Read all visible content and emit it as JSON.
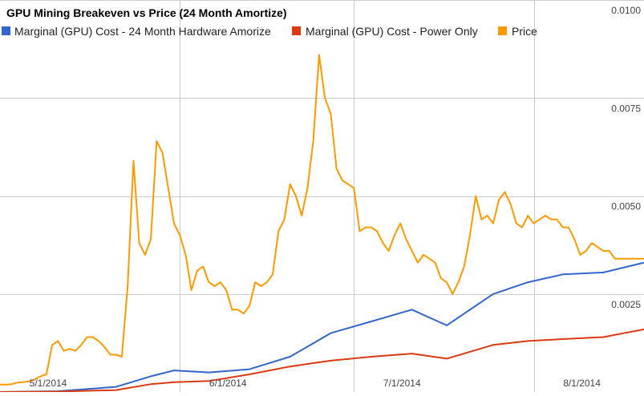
{
  "chart_data": {
    "type": "line",
    "title": "GPU Mining Breakeven vs Price (24 Month Amortize)",
    "xlabel": "",
    "ylabel": "",
    "x_ticks": [
      "5/1/2014",
      "6/1/2014",
      "7/1/2014",
      "8/1/2014"
    ],
    "x_tick_values": [
      0,
      31,
      61,
      92
    ],
    "y_ticks": [
      "0.0100",
      "0.0075",
      "0.0050",
      "0.0025"
    ],
    "y_tick_values": [
      0.01,
      0.0075,
      0.005,
      0.0025
    ],
    "ylim": [
      0,
      0.01
    ],
    "xlim": [
      0,
      111
    ],
    "grid": true,
    "legend_position": "top",
    "series": [
      {
        "name": "Marginal (GPU) Cost - 24 Month Hardware Amorize",
        "color": "#3366cc",
        "x": [
          0,
          10,
          20,
          26,
          30,
          36,
          43,
          50,
          57,
          64,
          71,
          77,
          85,
          91,
          97,
          104,
          111
        ],
        "y": [
          0,
          2e-05,
          0.00013,
          0.0004,
          0.00055,
          0.0005,
          0.00058,
          0.0009,
          0.0015,
          0.0018,
          0.0021,
          0.0017,
          0.0025,
          0.0028,
          0.003,
          0.00305,
          0.0033
        ]
      },
      {
        "name": "Marginal (GPU) Cost - Power Only",
        "color": "#dc3912",
        "x": [
          0,
          10,
          20,
          26,
          30,
          36,
          43,
          50,
          57,
          64,
          71,
          77,
          85,
          91,
          97,
          104,
          111
        ],
        "y": [
          0,
          1e-05,
          5e-05,
          0.0002,
          0.00025,
          0.00028,
          0.00045,
          0.00065,
          0.0008,
          0.0009,
          0.00098,
          0.00085,
          0.0012,
          0.0013,
          0.00135,
          0.0014,
          0.0016
        ]
      },
      {
        "name": "Price",
        "color": "#ff9900",
        "x": [
          0,
          1,
          2,
          3,
          4,
          5,
          6,
          7,
          8,
          9,
          10,
          11,
          12,
          13,
          14,
          15,
          16,
          17,
          18,
          19,
          20,
          21,
          22,
          23,
          24,
          25,
          26,
          27,
          28,
          29,
          30,
          31,
          32,
          33,
          34,
          35,
          36,
          37,
          38,
          39,
          40,
          41,
          42,
          43,
          44,
          45,
          46,
          47,
          48,
          49,
          50,
          51,
          52,
          53,
          54,
          55,
          56,
          57,
          58,
          59,
          60,
          61,
          62,
          63,
          64,
          65,
          66,
          67,
          68,
          69,
          70,
          71,
          72,
          73,
          74,
          75,
          76,
          77,
          78,
          79,
          80,
          81,
          82,
          83,
          84,
          85,
          86,
          87,
          88,
          89,
          90,
          91,
          92,
          93,
          94,
          95,
          96,
          97,
          98,
          99,
          100,
          101,
          102,
          103,
          104,
          105,
          106,
          107,
          108,
          109,
          110,
          111
        ],
        "y": [
          0.00019,
          0.00019,
          0.0002,
          0.00024,
          0.00025,
          0.00027,
          0.00032,
          0.0004,
          0.00045,
          0.0012,
          0.0013,
          0.00105,
          0.0011,
          0.00105,
          0.0012,
          0.0014,
          0.0014,
          0.0013,
          0.00115,
          0.00095,
          0.00095,
          0.0009,
          0.0027,
          0.0059,
          0.0038,
          0.0035,
          0.0039,
          0.0064,
          0.0061,
          0.0052,
          0.0043,
          0.004,
          0.0035,
          0.0026,
          0.0031,
          0.0032,
          0.0028,
          0.0027,
          0.0028,
          0.0026,
          0.0021,
          0.0021,
          0.002,
          0.0022,
          0.0028,
          0.0027,
          0.0028,
          0.003,
          0.0041,
          0.0044,
          0.0053,
          0.005,
          0.0045,
          0.0052,
          0.0064,
          0.0086,
          0.0075,
          0.0071,
          0.0057,
          0.0054,
          0.0053,
          0.0052,
          0.0041,
          0.0042,
          0.0042,
          0.0041,
          0.0038,
          0.0036,
          0.004,
          0.0043,
          0.0039,
          0.0036,
          0.0033,
          0.0035,
          0.0034,
          0.0033,
          0.0029,
          0.0028,
          0.0025,
          0.0028,
          0.0032,
          0.004,
          0.005,
          0.0044,
          0.0045,
          0.0043,
          0.0049,
          0.0051,
          0.0048,
          0.0043,
          0.0042,
          0.0045,
          0.0043,
          0.0044,
          0.0045,
          0.0044,
          0.0044,
          0.0042,
          0.0042,
          0.0039,
          0.0035,
          0.0036,
          0.0038,
          0.0037,
          0.0036,
          0.0036,
          0.0034,
          0.0034,
          0.0034,
          0.0034,
          0.0034,
          0.0034
        ]
      }
    ]
  }
}
